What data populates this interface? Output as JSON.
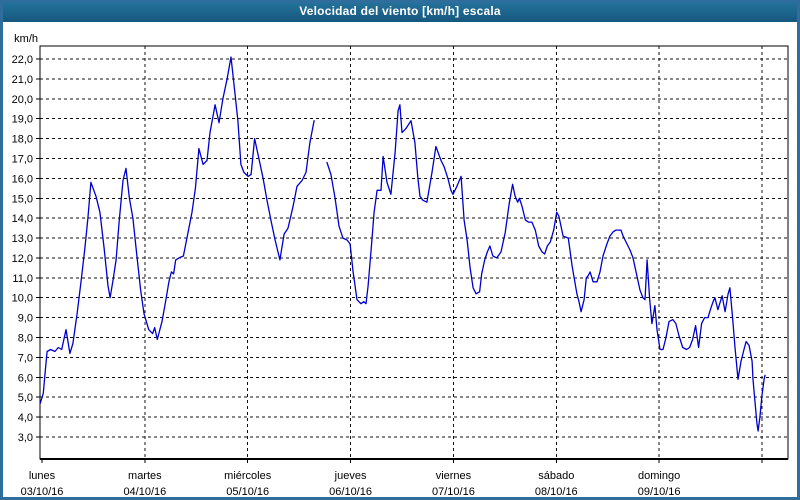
{
  "window": {
    "title": "Velocidad del viento [km/h] escala"
  },
  "chart_data": {
    "type": "line",
    "title": "Velocidad del viento [km/h] escala",
    "ylabel": "km/h",
    "unit_label": "km/h",
    "grid": "dashed",
    "legend": "none",
    "line_color": "#0000cc",
    "frame_color": "#2f6d9c",
    "titlebar_color": "#1a628c",
    "ylim": [
      1.9,
      22.65
    ],
    "x_hours_range": [
      -0.5,
      174.1
    ],
    "y_tick_values": [
      22,
      21,
      20,
      19,
      18,
      17,
      16,
      15,
      14,
      13,
      12,
      11,
      10,
      9,
      8,
      7,
      6,
      5,
      4,
      3
    ],
    "y_tick_labels": [
      "22,0",
      "21,0",
      "20,0",
      "19,0",
      "18,0",
      "17,0",
      "16,0",
      "15,0",
      "14,0",
      "13,0",
      "12,0",
      "11,0",
      "10,0",
      "9,0",
      "8,0",
      "7,0",
      "6,0",
      "5,0",
      "4,0",
      "3,0"
    ],
    "x_days": [
      {
        "weekday": "lunes",
        "date": "03/10/16"
      },
      {
        "weekday": "martes",
        "date": "04/10/16"
      },
      {
        "weekday": "miércoles",
        "date": "05/10/16"
      },
      {
        "weekday": "jueves",
        "date": "06/10/16"
      },
      {
        "weekday": "viernes",
        "date": "07/10/16"
      },
      {
        "weekday": "sábado",
        "date": "08/10/16"
      },
      {
        "weekday": "domingo",
        "date": "09/10/16"
      }
    ],
    "points_hours_kmh": [
      [
        -0.4,
        4.7
      ],
      [
        0.3,
        5.2
      ],
      [
        0.8,
        6.4
      ],
      [
        1.2,
        7.3
      ],
      [
        2,
        7.4
      ],
      [
        3,
        7.3
      ],
      [
        3.8,
        7.5
      ],
      [
        4.6,
        7.4
      ],
      [
        5.6,
        8.4
      ],
      [
        6.5,
        7.2
      ],
      [
        7.2,
        7.7
      ],
      [
        8.2,
        9.2
      ],
      [
        9.1,
        10.8
      ],
      [
        10,
        12.5
      ],
      [
        10.7,
        14
      ],
      [
        11.4,
        15.8
      ],
      [
        12.6,
        15.1
      ],
      [
        13.5,
        14.3
      ],
      [
        14.5,
        12.5
      ],
      [
        15.4,
        10.6
      ],
      [
        15.9,
        10
      ],
      [
        16.6,
        10.9
      ],
      [
        17.3,
        11.9
      ],
      [
        18,
        13.8
      ],
      [
        18.9,
        15.9
      ],
      [
        19.6,
        16.5
      ],
      [
        20.4,
        15
      ],
      [
        21.2,
        14
      ],
      [
        22.1,
        12.2
      ],
      [
        23,
        10.4
      ],
      [
        23.8,
        9.2
      ],
      [
        24.9,
        8.4
      ],
      [
        25.8,
        8.2
      ],
      [
        26.3,
        8.5
      ],
      [
        26.9,
        7.9
      ],
      [
        28,
        8.8
      ],
      [
        28.9,
        9.9
      ],
      [
        29.6,
        10.8
      ],
      [
        30.2,
        11.3
      ],
      [
        30.7,
        11.2
      ],
      [
        31.2,
        11.9
      ],
      [
        32,
        12
      ],
      [
        33,
        12.1
      ],
      [
        34.1,
        13.3
      ],
      [
        35,
        14.3
      ],
      [
        35.8,
        15.5
      ],
      [
        36.6,
        17.5
      ],
      [
        37.6,
        16.7
      ],
      [
        38.5,
        16.9
      ],
      [
        39.2,
        18.3
      ],
      [
        40.4,
        19.7
      ],
      [
        41.3,
        18.8
      ],
      [
        42.2,
        20
      ],
      [
        43.2,
        21
      ],
      [
        44.1,
        22.1
      ],
      [
        45,
        20.3
      ],
      [
        45.7,
        18.9
      ],
      [
        46.4,
        16.7
      ],
      [
        47.1,
        16.3
      ],
      [
        48.1,
        16.1
      ],
      [
        48.8,
        16.2
      ],
      [
        49.6,
        18
      ],
      [
        50.6,
        17
      ],
      [
        51.6,
        16
      ],
      [
        52.5,
        14.9
      ],
      [
        53.4,
        13.9
      ],
      [
        54.4,
        12.9
      ],
      [
        55.5,
        11.9
      ],
      [
        56.5,
        13.2
      ],
      [
        57.4,
        13.5
      ],
      [
        58.6,
        14.6
      ],
      [
        59.5,
        15.6
      ],
      [
        60.7,
        15.9
      ],
      [
        61.6,
        16.3
      ],
      [
        62.5,
        17.8
      ],
      [
        63.5,
        18.9
      ],
      [
        64.5,
        null
      ],
      [
        66.5,
        16.8
      ],
      [
        67.4,
        16.2
      ],
      [
        68.4,
        15
      ],
      [
        69.3,
        13.6
      ],
      [
        70.2,
        13
      ],
      [
        71.2,
        12.9
      ],
      [
        71.9,
        12.7
      ],
      [
        72.6,
        11.3
      ],
      [
        73.5,
        9.9
      ],
      [
        74.4,
        9.7
      ],
      [
        75.1,
        9.8
      ],
      [
        75.6,
        9.7
      ],
      [
        76.1,
        10.6
      ],
      [
        76.8,
        12.4
      ],
      [
        77.5,
        14.3
      ],
      [
        78.2,
        15.4
      ],
      [
        79.1,
        15.4
      ],
      [
        79.6,
        17.1
      ],
      [
        80.5,
        15.8
      ],
      [
        81.4,
        15.2
      ],
      [
        82.4,
        17.3
      ],
      [
        83.1,
        19.4
      ],
      [
        83.5,
        19.7
      ],
      [
        84,
        18.3
      ],
      [
        84.9,
        18.5
      ],
      [
        86.1,
        18.9
      ],
      [
        87,
        17.8
      ],
      [
        87.7,
        16
      ],
      [
        88.2,
        15.1
      ],
      [
        88.9,
        14.9
      ],
      [
        89.8,
        14.8
      ],
      [
        91,
        16.3
      ],
      [
        91.9,
        17.6
      ],
      [
        93.1,
        16.9
      ],
      [
        93.8,
        16.6
      ],
      [
        94.7,
        16
      ],
      [
        95.4,
        15.4
      ],
      [
        95.9,
        15.2
      ],
      [
        96.8,
        15.6
      ],
      [
        97.8,
        16.1
      ],
      [
        98.5,
        13.9
      ],
      [
        99.2,
        12.9
      ],
      [
        99.9,
        11.5
      ],
      [
        100.6,
        10.5
      ],
      [
        101.3,
        10.2
      ],
      [
        102.1,
        10.3
      ],
      [
        102.6,
        11.2
      ],
      [
        103.3,
        11.9
      ],
      [
        103.9,
        12.3
      ],
      [
        104.5,
        12.6
      ],
      [
        105.2,
        12.1
      ],
      [
        106.1,
        12
      ],
      [
        107.1,
        12.3
      ],
      [
        108.1,
        13.3
      ],
      [
        109,
        14.7
      ],
      [
        109.8,
        15.7
      ],
      [
        110.4,
        15.1
      ],
      [
        111,
        14.8
      ],
      [
        111.4,
        15
      ],
      [
        112,
        14.6
      ],
      [
        112.8,
        13.9
      ],
      [
        113.5,
        13.8
      ],
      [
        114.3,
        13.8
      ],
      [
        115.1,
        13.4
      ],
      [
        115.9,
        12.6
      ],
      [
        116.7,
        12.3
      ],
      [
        117.3,
        12.2
      ],
      [
        117.9,
        12.6
      ],
      [
        118.6,
        12.8
      ],
      [
        119.4,
        13.4
      ],
      [
        120.1,
        14.3
      ],
      [
        120.6,
        14.1
      ],
      [
        121.6,
        13.1
      ],
      [
        122.8,
        13
      ],
      [
        123.7,
        11.6
      ],
      [
        124.8,
        10.2
      ],
      [
        125.3,
        9.8
      ],
      [
        125.8,
        9.3
      ],
      [
        126.5,
        9.9
      ],
      [
        127,
        11
      ],
      [
        127.4,
        11.1
      ],
      [
        127.9,
        11.3
      ],
      [
        128.6,
        10.8
      ],
      [
        129.5,
        10.8
      ],
      [
        130.2,
        11.3
      ],
      [
        130.9,
        12.1
      ],
      [
        131.8,
        12.7
      ],
      [
        132.5,
        13.1
      ],
      [
        133.2,
        13.3
      ],
      [
        133.9,
        13.4
      ],
      [
        135.1,
        13.4
      ],
      [
        135.6,
        13.1
      ],
      [
        136.5,
        12.7
      ],
      [
        137.2,
        12.4
      ],
      [
        137.9,
        12
      ],
      [
        138.8,
        11.1
      ],
      [
        139.5,
        10.4
      ],
      [
        140.2,
        10
      ],
      [
        140.7,
        9.9
      ],
      [
        141.2,
        11.9
      ],
      [
        141.8,
        9.9
      ],
      [
        142.3,
        8.7
      ],
      [
        143,
        9.6
      ],
      [
        143.5,
        8.4
      ],
      [
        144.2,
        7.4
      ],
      [
        144.9,
        7.4
      ],
      [
        145.6,
        8
      ],
      [
        146.3,
        8.8
      ],
      [
        147.2,
        8.9
      ],
      [
        147.9,
        8.7
      ],
      [
        148.6,
        8.1
      ],
      [
        149.5,
        7.5
      ],
      [
        150.4,
        7.4
      ],
      [
        151.1,
        7.5
      ],
      [
        151.8,
        7.9
      ],
      [
        152.5,
        8.6
      ],
      [
        153.2,
        7.5
      ],
      [
        153.9,
        8.7
      ],
      [
        154.6,
        9
      ],
      [
        155.4,
        9
      ],
      [
        156.1,
        9.5
      ],
      [
        156.6,
        9.8
      ],
      [
        157,
        10
      ],
      [
        157.7,
        9.4
      ],
      [
        158.7,
        10.1
      ],
      [
        159.4,
        9.3
      ],
      [
        160.1,
        10.2
      ],
      [
        160.5,
        10.5
      ],
      [
        161.2,
        8.8
      ],
      [
        161.7,
        7.5
      ],
      [
        162.4,
        5.9
      ],
      [
        163.1,
        6.8
      ],
      [
        163.8,
        7.4
      ],
      [
        164.3,
        7.8
      ],
      [
        165,
        7.6
      ],
      [
        165.7,
        6.8
      ],
      [
        165.9,
        5.9
      ],
      [
        166.4,
        4.7
      ],
      [
        166.8,
        3.7
      ],
      [
        167.1,
        3.3
      ],
      [
        167.5,
        4
      ],
      [
        168,
        5.1
      ],
      [
        168.5,
        5.9
      ],
      [
        168.7,
        6.1
      ]
    ]
  }
}
